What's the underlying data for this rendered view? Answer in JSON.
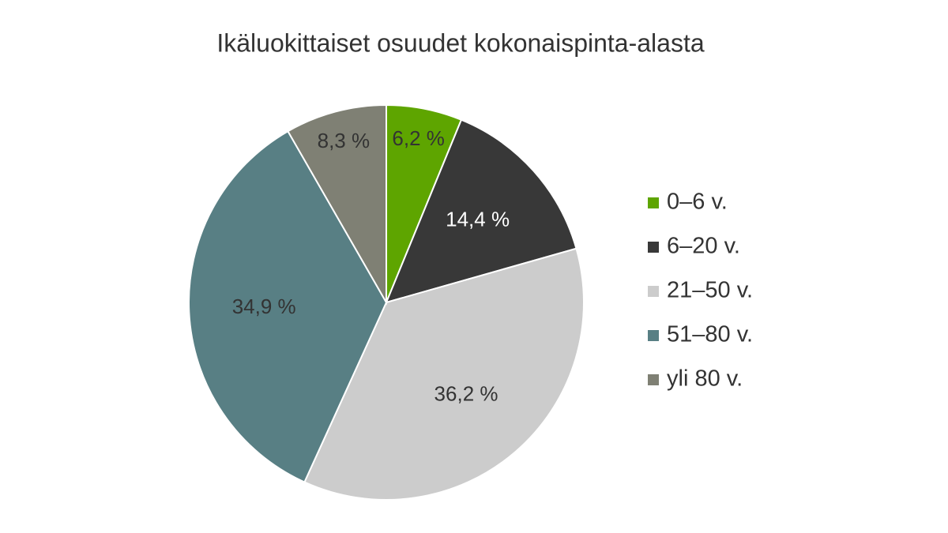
{
  "chart_data": {
    "type": "pie",
    "title": "Ikäluokittaiset osuudet kokonaispinta-alasta",
    "categories": [
      "0–6 v.",
      "6–20 v.",
      "21–50 v.",
      "51–80 v.",
      "yli 80 v."
    ],
    "values": [
      6.2,
      14.4,
      36.2,
      34.9,
      8.3
    ],
    "value_labels": [
      "6,2 %",
      "14,4 %",
      "36,2 %",
      "34,9 %",
      "8,3 %"
    ],
    "colors": [
      "#5ea500",
      "#383838",
      "#cccccc",
      "#587f84",
      "#7f8074"
    ],
    "legend": "right"
  }
}
